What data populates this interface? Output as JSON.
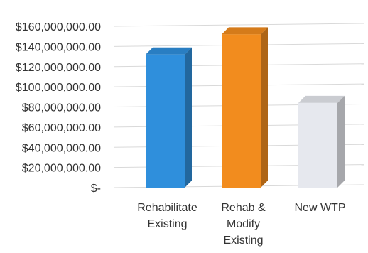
{
  "chart_data": {
    "type": "bar",
    "style": "3d-column",
    "title": "",
    "xlabel": "",
    "ylabel": "",
    "categories": [
      [
        "Rehabilitate",
        "Existing"
      ],
      [
        "Rehab &",
        "Modify",
        "Existing"
      ],
      [
        "New WTP"
      ]
    ],
    "values": [
      132000000,
      152000000,
      84000000
    ],
    "bar_colors": [
      "#2f8fdc",
      "#f28c1e",
      "#e6e8ee"
    ],
    "ylim": [
      0,
      160000000
    ],
    "yticks": [
      0,
      20000000,
      40000000,
      60000000,
      80000000,
      100000000,
      120000000,
      140000000,
      160000000
    ],
    "ytick_labels": [
      "$-",
      "$20,000,000.00",
      "$40,000,000.00",
      "$60,000,000.00",
      "$80,000,000.00",
      "$100,000,000.00",
      "$120,000,000.00",
      "$140,000,000.00",
      "$160,000,000.00"
    ],
    "grid": true,
    "legend": "none"
  }
}
